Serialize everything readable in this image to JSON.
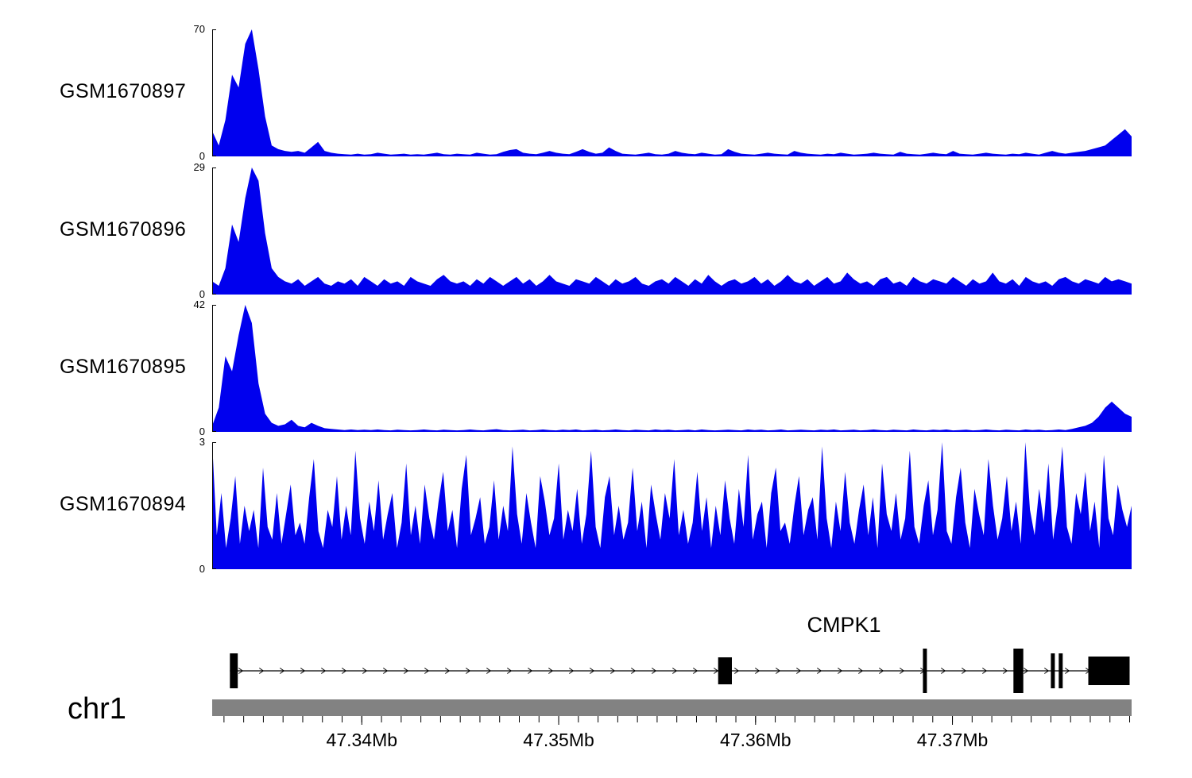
{
  "figure": {
    "background": "#ffffff",
    "signal_color": "#0000ee",
    "axis_color": "#000000",
    "chromosome_bar_color": "#828282"
  },
  "chart_data": {
    "type": "area",
    "title": "",
    "layout": "stacked genome browser coverage tracks",
    "x_axis": {
      "chromosome_label": "chr1",
      "unit": "Mb",
      "start_mb": 47.3324,
      "end_mb": 47.3791,
      "minor_tick_step_mb": 0.001,
      "major_ticks": [
        {
          "mb": 47.34,
          "label": "47.34Mb"
        },
        {
          "mb": 47.35,
          "label": "47.35Mb"
        },
        {
          "mb": 47.36,
          "label": "47.36Mb"
        },
        {
          "mb": 47.37,
          "label": "47.37Mb"
        }
      ]
    },
    "tracks": [
      {
        "name": "GSM1670897",
        "ymin": 0,
        "ymax": 70,
        "ymin_label": "0",
        "ymax_label": "70",
        "color": "#0000ee",
        "values": [
          14,
          6,
          20,
          45,
          38,
          62,
          70,
          48,
          22,
          6,
          4,
          3,
          2.5,
          3,
          2,
          5,
          8,
          3,
          2,
          1.5,
          1.2,
          1,
          1.5,
          1,
          1.2,
          2,
          1.5,
          1,
          1.2,
          1.5,
          1,
          1.2,
          1,
          1.5,
          2,
          1.2,
          1,
          1.5,
          1.2,
          1,
          2,
          1.5,
          1,
          1.2,
          2.5,
          3.5,
          4,
          2,
          1.5,
          1.2,
          2,
          3,
          2,
          1.5,
          1.2,
          2.5,
          4,
          2.5,
          1.5,
          2,
          5,
          3,
          1.5,
          1.2,
          1,
          1.5,
          2,
          1.2,
          1,
          1.5,
          3,
          2,
          1.5,
          1.2,
          2,
          1.5,
          1,
          1.2,
          4,
          2.5,
          1.5,
          1.2,
          1,
          1.5,
          2,
          1.5,
          1.2,
          1,
          3,
          2,
          1.5,
          1.2,
          1,
          1.5,
          1.2,
          2,
          1.5,
          1,
          1.2,
          1.5,
          2,
          1.5,
          1.2,
          1,
          2.5,
          1.5,
          1.2,
          1,
          1.5,
          2,
          1.5,
          1.2,
          3,
          1.5,
          1.2,
          1,
          1.5,
          2,
          1.5,
          1.2,
          1,
          1.5,
          1.2,
          2,
          1.5,
          1,
          2,
          3,
          2,
          1.5,
          2,
          2.5,
          3,
          4,
          5,
          6,
          9,
          12,
          15,
          11
        ]
      },
      {
        "name": "GSM1670896",
        "ymin": 0,
        "ymax": 29,
        "ymin_label": "0",
        "ymax_label": "29",
        "color": "#0000ee",
        "values": [
          3,
          2,
          6,
          16,
          12,
          22,
          29,
          26,
          14,
          6,
          4,
          3,
          2.5,
          3.5,
          2,
          3,
          4,
          2.5,
          2,
          3,
          2.5,
          3.5,
          2,
          4,
          3,
          2,
          3.5,
          2.5,
          3,
          2,
          4,
          3,
          2.5,
          2,
          3.5,
          4.5,
          3,
          2.5,
          3,
          2,
          3.5,
          2.5,
          4,
          3,
          2,
          3,
          4,
          2.5,
          3.5,
          2,
          3,
          4.5,
          3,
          2.5,
          2,
          3.5,
          3,
          2.5,
          4,
          3,
          2,
          3.5,
          2.5,
          3,
          4,
          2.5,
          2,
          3,
          3.5,
          2.5,
          4,
          3,
          2,
          3.5,
          2.5,
          4.5,
          3,
          2,
          3,
          3.5,
          2.5,
          3,
          4,
          2.5,
          3.5,
          2,
          3,
          4.5,
          3,
          2.5,
          3.5,
          2,
          3,
          4,
          2.5,
          3,
          5,
          3.5,
          2.5,
          3,
          2,
          3.5,
          4,
          2.5,
          3,
          2,
          4,
          3,
          2.5,
          3.5,
          3,
          2.5,
          4,
          3,
          2,
          3.5,
          2.5,
          3,
          5,
          3,
          2.5,
          3.5,
          2,
          4,
          3,
          2.5,
          3,
          2,
          3.5,
          4,
          3,
          2.5,
          3.5,
          3,
          2.5,
          4,
          3,
          3.5,
          3,
          2.5
        ]
      },
      {
        "name": "GSM1670895",
        "ymin": 0,
        "ymax": 42,
        "ymin_label": "0",
        "ymax_label": "42",
        "color": "#0000ee",
        "values": [
          2,
          8,
          25,
          20,
          32,
          42,
          36,
          16,
          6,
          3,
          2,
          2.5,
          4,
          2,
          1.5,
          3,
          2,
          1.2,
          1,
          0.8,
          0.6,
          0.8,
          0.6,
          0.7,
          0.6,
          0.8,
          0.6,
          0.5,
          0.7,
          0.6,
          0.5,
          0.6,
          0.8,
          0.6,
          0.5,
          0.7,
          0.6,
          0.5,
          0.6,
          0.8,
          0.6,
          0.5,
          0.7,
          0.9,
          0.6,
          0.5,
          0.6,
          0.7,
          0.5,
          0.6,
          0.8,
          0.6,
          0.5,
          0.7,
          0.6,
          0.8,
          0.5,
          0.6,
          0.7,
          0.5,
          0.6,
          0.8,
          0.6,
          0.5,
          0.7,
          0.6,
          0.5,
          0.8,
          0.6,
          0.7,
          0.5,
          0.6,
          0.7,
          0.5,
          0.8,
          0.6,
          0.5,
          0.6,
          0.7,
          0.6,
          0.5,
          0.8,
          0.6,
          0.7,
          0.5,
          0.6,
          0.8,
          0.5,
          0.6,
          0.7,
          0.6,
          0.5,
          0.7,
          0.6,
          0.8,
          0.5,
          0.6,
          0.7,
          0.5,
          0.6,
          0.8,
          0.6,
          0.5,
          0.7,
          0.6,
          0.5,
          0.8,
          0.6,
          0.5,
          0.7,
          0.6,
          0.8,
          0.5,
          0.6,
          0.7,
          0.5,
          0.6,
          0.8,
          0.6,
          0.5,
          0.7,
          0.6,
          0.5,
          0.8,
          0.6,
          0.7,
          0.5,
          0.6,
          0.8,
          0.6,
          1,
          1.5,
          2,
          3,
          5,
          8,
          10,
          8,
          6,
          5
        ]
      },
      {
        "name": "GSM1670894",
        "ymin": 0,
        "ymax": 3,
        "ymin_label": "0",
        "ymax_label": "3",
        "color": "#0000ee",
        "values": [
          3,
          0.8,
          1.8,
          0.5,
          1.2,
          2.2,
          0.6,
          1.5,
          0.9,
          1.4,
          0.5,
          2.4,
          1,
          0.7,
          1.8,
          0.6,
          1.3,
          2,
          0.8,
          1.1,
          0.6,
          1.7,
          2.6,
          0.9,
          0.5,
          1.4,
          1,
          2.2,
          0.7,
          1.5,
          0.8,
          2.8,
          1.2,
          0.6,
          1.6,
          0.9,
          2.1,
          0.7,
          1.3,
          1.8,
          0.5,
          1.1,
          2.5,
          0.8,
          1.5,
          0.6,
          2,
          1.2,
          0.7,
          1.6,
          2.3,
          0.9,
          1.4,
          0.5,
          1.9,
          2.7,
          0.8,
          1.2,
          1.7,
          0.6,
          1,
          2.1,
          0.7,
          1.5,
          0.9,
          2.9,
          1.3,
          0.6,
          1.8,
          1.1,
          0.5,
          2.2,
          1.6,
          0.8,
          1.2,
          2.5,
          0.7,
          1.4,
          0.9,
          1.9,
          0.6,
          1.3,
          2.8,
          1,
          0.5,
          1.7,
          2.2,
          0.8,
          1.5,
          0.7,
          1.1,
          2.4,
          0.9,
          1.6,
          0.5,
          2,
          1.3,
          0.7,
          1.8,
          1.2,
          2.6,
          0.8,
          1.4,
          0.6,
          1.1,
          2.3,
          0.9,
          1.7,
          0.5,
          1.5,
          0.8,
          2.1,
          1.2,
          0.6,
          1.9,
          1,
          2.7,
          0.7,
          1.3,
          1.6,
          0.5,
          1.8,
          2.4,
          0.9,
          1.1,
          0.6,
          1.5,
          2.2,
          0.8,
          1.4,
          1.7,
          0.7,
          2.9,
          1.2,
          0.5,
          1.6,
          0.9,
          2.3,
          1.1,
          0.6,
          1.4,
          2,
          0.8,
          1.7,
          0.5,
          2.5,
          1.3,
          0.9,
          1.8,
          0.7,
          1.2,
          2.8,
          1,
          0.6,
          1.5,
          2.1,
          0.8,
          1.4,
          3,
          0.9,
          0.6,
          1.7,
          2.4,
          1.1,
          0.5,
          1.9,
          1.3,
          0.8,
          2.6,
          1.5,
          0.7,
          1.2,
          2.2,
          0.9,
          1.6,
          0.6,
          3,
          1.4,
          0.8,
          1.9,
          1.1,
          2.5,
          0.7,
          1.5,
          2.9,
          1,
          0.6,
          1.8,
          1.3,
          2.3,
          0.9,
          1.6,
          0.5,
          2.7,
          1.2,
          0.8,
          2,
          1.4,
          1,
          1.5
        ]
      }
    ],
    "gene_track": {
      "gene_label": "CMPK1",
      "strand": "+",
      "gene_start_mb": 47.3333,
      "gene_end_mb": 47.379,
      "exons": [
        {
          "start_mb": 47.3333,
          "end_mb": 47.3337,
          "height": 44
        },
        {
          "start_mb": 47.3581,
          "end_mb": 47.3588,
          "height": 34
        },
        {
          "start_mb": 47.3685,
          "end_mb": 47.3687,
          "height": 56
        },
        {
          "start_mb": 47.3731,
          "end_mb": 47.3736,
          "height": 56
        },
        {
          "start_mb": 47.375,
          "end_mb": 47.3752,
          "height": 44
        },
        {
          "start_mb": 47.3754,
          "end_mb": 47.3756,
          "height": 44
        },
        {
          "start_mb": 47.3769,
          "end_mb": 47.379,
          "height": 36
        }
      ]
    }
  }
}
